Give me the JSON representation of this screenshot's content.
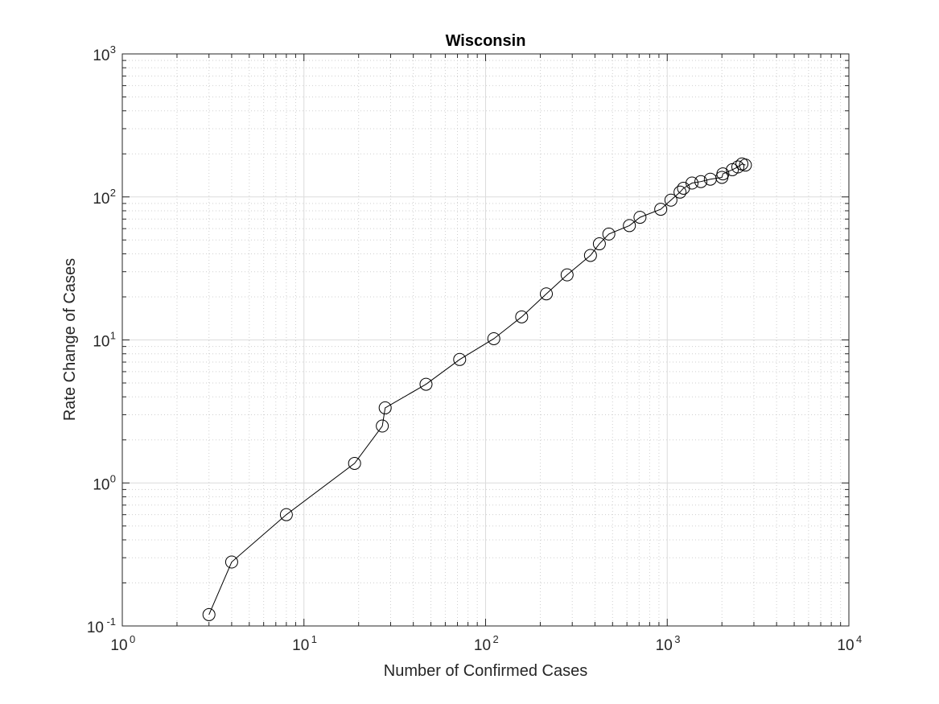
{
  "chart_data": {
    "type": "scatter",
    "title": "Wisconsin",
    "xlabel": "Number of Confirmed Cases",
    "ylabel": "Rate Change of Cases",
    "xscale": "log",
    "yscale": "log",
    "xlim": [
      1,
      10000
    ],
    "ylim": [
      0.1,
      1000
    ],
    "grid": true,
    "minor_grid": true,
    "x_ticks": [
      {
        "base": "10",
        "exp": "0"
      },
      {
        "base": "10",
        "exp": "1"
      },
      {
        "base": "10",
        "exp": "2"
      },
      {
        "base": "10",
        "exp": "3"
      },
      {
        "base": "10",
        "exp": "4"
      }
    ],
    "y_ticks": [
      {
        "base": "10",
        "exp": "-1"
      },
      {
        "base": "10",
        "exp": "0"
      },
      {
        "base": "10",
        "exp": "1"
      },
      {
        "base": "10",
        "exp": "2"
      },
      {
        "base": "10",
        "exp": "3"
      }
    ],
    "series": [
      {
        "marker": "circle-open",
        "line": "solid",
        "color": "#000000",
        "x": [
          3,
          4,
          8,
          19,
          27,
          28,
          47,
          72,
          111,
          158,
          216,
          281,
          378,
          423,
          477,
          619,
          708,
          921,
          1048,
          1176,
          1229,
          1369,
          1532,
          1727,
          2000,
          2025,
          2283,
          2448,
          2578,
          2694
        ],
        "y": [
          0.12,
          0.28,
          0.6,
          1.37,
          2.5,
          3.35,
          4.9,
          7.3,
          10.2,
          14.5,
          21,
          28.5,
          39,
          47,
          55,
          63,
          72,
          82,
          95,
          108,
          115,
          125,
          128,
          133,
          137,
          145,
          155,
          162,
          170,
          167
        ]
      }
    ]
  }
}
